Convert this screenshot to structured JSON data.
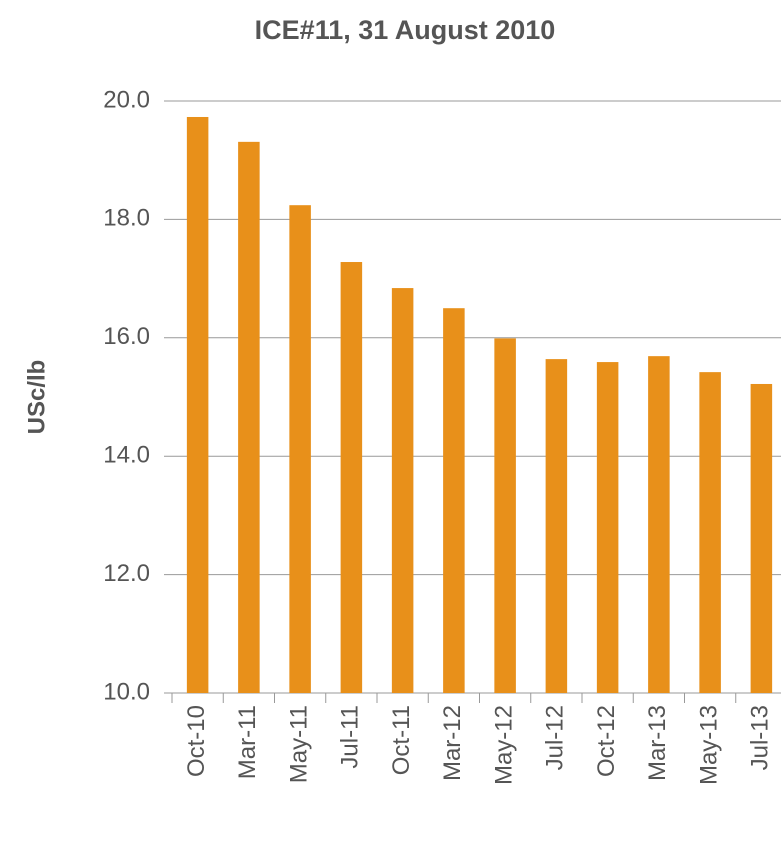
{
  "chart_data": {
    "type": "bar",
    "title": "ICE#11, 31 August 2010",
    "y_label": "USc/lb",
    "categories": [
      "Oct-10",
      "Mar-11",
      "May-11",
      "Jul-11",
      "Oct-11",
      "Mar-12",
      "May-12",
      "Jul-12",
      "Oct-12",
      "Mar-13",
      "May-13",
      "Jul-13"
    ],
    "values": [
      19.73,
      19.31,
      18.24,
      17.28,
      16.84,
      16.5,
      15.99,
      15.64,
      15.59,
      15.69,
      15.42,
      15.22
    ],
    "color": "#e8901a",
    "ylim": [
      10,
      20
    ],
    "yticks": [
      {
        "value": 10,
        "label": "10.0"
      },
      {
        "value": 12,
        "label": "12.0"
      },
      {
        "value": 14,
        "label": "14.0"
      },
      {
        "value": 16,
        "label": "16.0"
      },
      {
        "value": 18,
        "label": "18.0"
      },
      {
        "value": 20,
        "label": "20.0"
      }
    ],
    "grid": true
  }
}
